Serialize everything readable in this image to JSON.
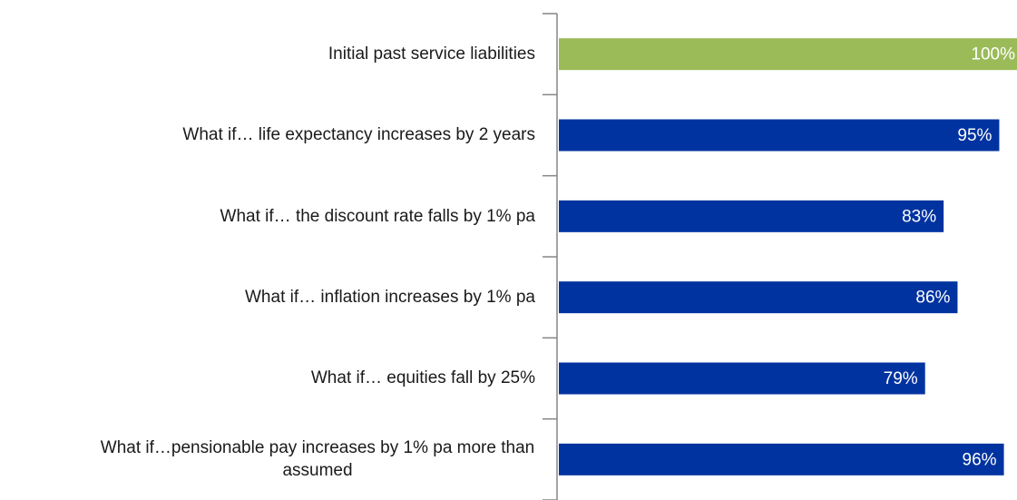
{
  "chart_data": {
    "type": "hbar",
    "categories": [
      "Initial past service liabilities",
      "What if… life expectancy increases by 2 years",
      "What if… the discount rate falls by 1% pa",
      "What if… inflation increases by 1% pa",
      "What if… equities fall by 25%",
      "What if…pensionable pay increases by 1% pa more than assumed"
    ],
    "values": [
      100,
      95,
      83,
      86,
      79,
      96
    ],
    "value_labels": [
      "100%",
      "95%",
      "83%",
      "86%",
      "79%",
      "96%"
    ],
    "colors": [
      "#9bbb59",
      "#0033a0",
      "#0033a0",
      "#0033a0",
      "#0033a0",
      "#0033a0"
    ]
  }
}
